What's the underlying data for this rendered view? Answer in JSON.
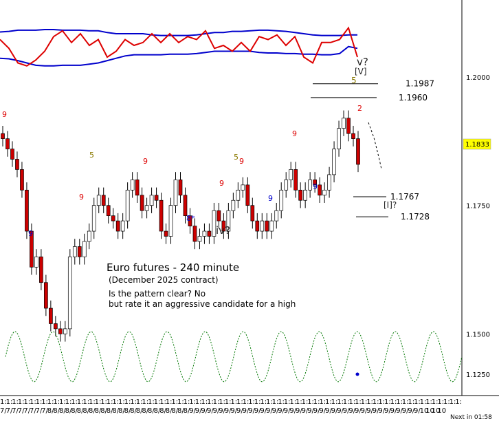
{
  "chart_data": [
    {
      "type": "line",
      "panel": "oscillator-top",
      "series": [
        {
          "color": "#0000cc",
          "values": [
            0.63,
            0.64,
            0.66,
            0.66,
            0.66,
            0.67,
            0.67,
            0.66,
            0.66,
            0.66,
            0.65,
            0.65,
            0.62,
            0.6,
            0.6,
            0.6,
            0.6,
            0.58,
            0.57,
            0.57,
            0.57,
            0.57,
            0.58,
            0.6,
            0.62,
            0.62,
            0.64,
            0.64,
            0.65,
            0.66,
            0.66,
            0.65,
            0.64,
            0.62,
            0.6,
            0.58,
            0.57,
            0.57,
            0.57,
            0.58,
            0.58
          ]
        },
        {
          "color": "#0000cc",
          "values": [
            0.18,
            0.17,
            0.14,
            0.1,
            0.06,
            0.05,
            0.05,
            0.06,
            0.06,
            0.06,
            0.08,
            0.1,
            0.14,
            0.18,
            0.22,
            0.24,
            0.24,
            0.24,
            0.24,
            0.25,
            0.25,
            0.25,
            0.26,
            0.28,
            0.3,
            0.3,
            0.3,
            0.3,
            0.3,
            0.28,
            0.27,
            0.27,
            0.26,
            0.26,
            0.25,
            0.25,
            0.24,
            0.24,
            0.26,
            0.38,
            0.35
          ]
        },
        {
          "color": "#dd0000",
          "values": [
            0.5,
            0.35,
            0.1,
            0.05,
            0.15,
            0.3,
            0.55,
            0.65,
            0.45,
            0.6,
            0.4,
            0.5,
            0.2,
            0.3,
            0.5,
            0.4,
            0.45,
            0.6,
            0.45,
            0.6,
            0.45,
            0.55,
            0.5,
            0.65,
            0.35,
            0.4,
            0.3,
            0.45,
            0.3,
            0.55,
            0.5,
            0.58,
            0.4,
            0.55,
            0.2,
            0.1,
            0.45,
            0.45,
            0.5,
            0.7,
            0.2
          ]
        }
      ]
    },
    {
      "type": "candlestick",
      "panel": "price",
      "title": "Euro futures - 240 minute",
      "subtitle": "(December 2025 contract)",
      "notes": [
        "Is the pattern clear? No",
        "but rate it an aggressive candidate for a high"
      ],
      "ylim": [
        1.138,
        1.215
      ],
      "yticks": [
        1.15,
        1.175,
        1.2
      ],
      "current_price": 1.1833,
      "closes": [
        1.188,
        1.186,
        1.184,
        1.182,
        1.178,
        1.17,
        1.163,
        1.165,
        1.16,
        1.155,
        1.152,
        1.151,
        1.15,
        1.151,
        1.165,
        1.167,
        1.165,
        1.168,
        1.17,
        1.175,
        1.177,
        1.175,
        1.173,
        1.172,
        1.17,
        1.172,
        1.178,
        1.18,
        1.177,
        1.174,
        1.175,
        1.177,
        1.176,
        1.17,
        1.169,
        1.175,
        1.18,
        1.177,
        1.173,
        1.171,
        1.168,
        1.169,
        1.17,
        1.169,
        1.174,
        1.172,
        1.17,
        1.174,
        1.176,
        1.178,
        1.179,
        1.175,
        1.172,
        1.17,
        1.172,
        1.17,
        1.172,
        1.174,
        1.178,
        1.18,
        1.182,
        1.178,
        1.176,
        1.178,
        1.18,
        1.179,
        1.177,
        1.178,
        1.181,
        1.186,
        1.19,
        1.192,
        1.189,
        1.188,
        1.183
      ],
      "levels": [
        {
          "label": "1.1987",
          "value": 1.1987
        },
        {
          "label": "1.1960",
          "value": 1.196
        },
        {
          "label": "1.1767",
          "value": 1.1767
        },
        {
          "label": "1.1728",
          "value": 1.1728
        }
      ],
      "annotations": [
        {
          "text": "9",
          "color": "#dd0000"
        },
        {
          "text": "9",
          "color": "#0000cc"
        },
        {
          "text": "5",
          "color": "#8b7a00"
        },
        {
          "text": "9",
          "color": "#dd0000"
        },
        {
          "text": "9",
          "color": "#dd0000"
        },
        {
          "text": "8*",
          "color": "#0000cc"
        },
        {
          "text": "iv?",
          "color": "#222222"
        },
        {
          "text": "9",
          "color": "#dd0000"
        },
        {
          "text": "5",
          "color": "#8b7a00"
        },
        {
          "text": "9",
          "color": "#0000cc"
        },
        {
          "text": "9",
          "color": "#dd0000"
        },
        {
          "text": "9",
          "color": "#dd0000"
        },
        {
          "text": "9",
          "color": "#0000cc"
        },
        {
          "text": "5",
          "color": "#8b7a00"
        },
        {
          "text": "2",
          "color": "#dd0000"
        },
        {
          "text": "v?",
          "color": "#222222"
        },
        {
          "text": "[V]",
          "color": "#222222"
        },
        {
          "text": "[I]?",
          "color": "#222222"
        }
      ]
    },
    {
      "type": "line",
      "panel": "cycle",
      "ytick": "1.1250",
      "series": [
        {
          "color": "#007700",
          "style": "dashed",
          "cycles": 12
        }
      ]
    }
  ],
  "x_ticks": [
    "1:",
    "1:",
    "1:",
    "1:",
    "1:",
    "1:",
    "1:",
    "1:",
    "1:",
    "1:",
    "1:",
    "1:",
    "1:",
    "1:",
    "1:",
    "1:",
    "1:",
    "1:",
    "1:",
    "1:",
    "1:",
    "1:",
    "1:",
    "1:",
    "1:",
    "1:",
    "1:",
    "1:",
    "1:",
    "1:",
    "1:",
    "1:",
    "1:",
    "1:",
    "1:",
    "1:",
    "1:",
    "1:",
    "1:",
    "1:",
    "1:",
    "1:",
    "1:",
    "1:",
    "1:",
    "1:",
    "1:",
    "1:",
    "1:",
    "1:",
    "1:",
    "1:",
    "1:",
    "1:",
    "1:",
    "1:",
    "1:",
    "1:",
    "1:",
    "1:",
    "1:",
    "1:",
    "1:",
    "1:",
    "1:",
    "1:",
    "1:",
    "1:",
    "1:",
    "1:",
    "1:",
    "1:",
    "1:",
    "1:",
    "1:",
    "1:",
    "1:",
    "1:",
    "1:"
  ],
  "x_dates": [
    "7/",
    "7/",
    "7/",
    "7/",
    "7/",
    "7/",
    "7/",
    "7/",
    "8/",
    "8/",
    "8/",
    "8/",
    "8/",
    "8/",
    "8/",
    "8/",
    "8/",
    "8/",
    "8/",
    "8/",
    "8/",
    "8/",
    "8/",
    "8/",
    "8/",
    "8/",
    "8/",
    "8/",
    "8/",
    "8/",
    "8/",
    "8/",
    "9/",
    "9/",
    "9/",
    "9/",
    "9/",
    "9/",
    "9/",
    "9/",
    "9/",
    "9/",
    "9/",
    "9/",
    "9/",
    "9/",
    "9/",
    "9/",
    "9/",
    "9/",
    "9/",
    "9/",
    "9/",
    "9/",
    "9/",
    "9/",
    "9/",
    "9/",
    "9/",
    "9/",
    "9/",
    "9/",
    "9/",
    "9/",
    "9/",
    "9/",
    "9/",
    "9/",
    "9/",
    "9/",
    "9/",
    "10",
    "10",
    "10",
    "10"
  ],
  "footer": {
    "next_label": "Next in 01:58"
  }
}
